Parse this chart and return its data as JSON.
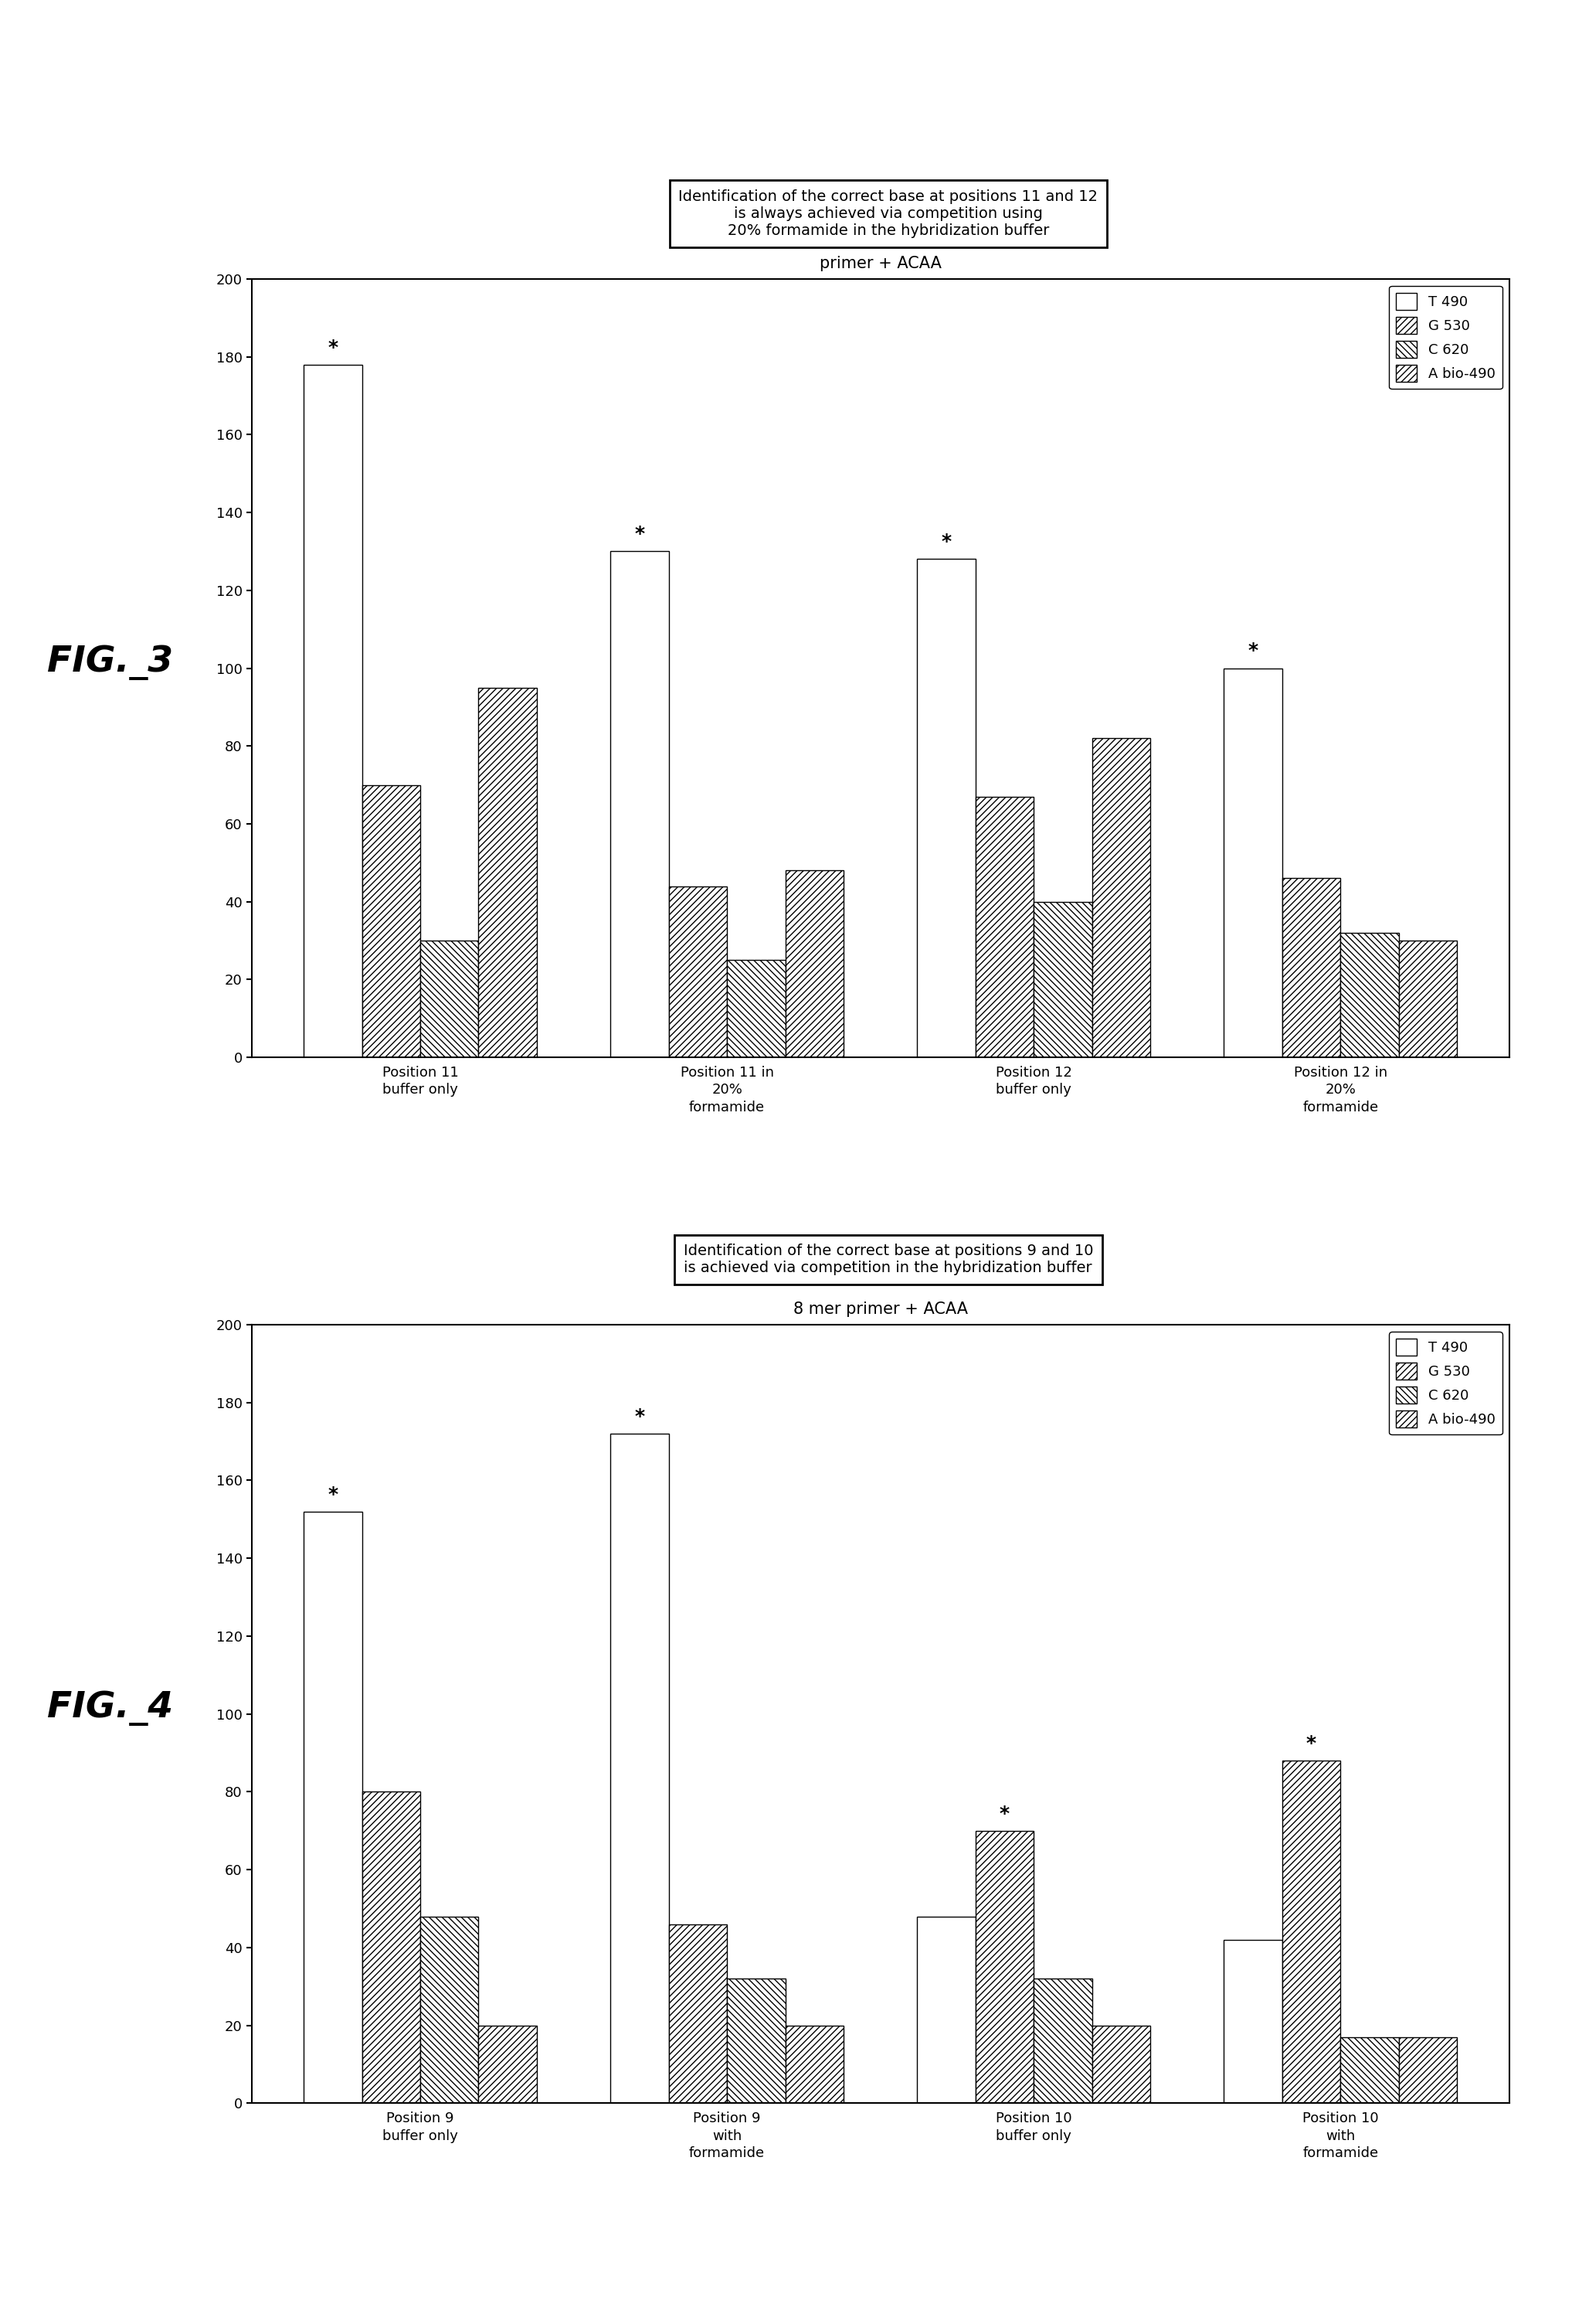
{
  "fig3": {
    "title": "primer + ACAA",
    "box_text": "Identification of the correct base at positions 11 and 12\nis always achieved via competition using\n20% formamide in the hybridization buffer",
    "categories": [
      "Position 11\nbuffer only",
      "Position 11 in\n20%\nformamide",
      "Position 12\nbuffer only",
      "Position 12 in\n20%\nformamide"
    ],
    "series": {
      "T 490": [
        178,
        130,
        128,
        100
      ],
      "G 530": [
        70,
        44,
        67,
        46
      ],
      "C 620": [
        30,
        25,
        40,
        32
      ],
      "A bio-490": [
        95,
        48,
        82,
        30
      ]
    },
    "stars": [
      {
        "group": 0,
        "series": 0,
        "value": 178
      },
      {
        "group": 1,
        "series": 0,
        "value": 130
      },
      {
        "group": 2,
        "series": 0,
        "value": 128
      },
      {
        "group": 3,
        "series": 0,
        "value": 100
      }
    ]
  },
  "fig4": {
    "title": "8 mer primer + ACAA",
    "box_text": "Identification of the correct base at positions 9 and 10\nis achieved via competition in the hybridization buffer",
    "categories": [
      "Position 9\nbuffer only",
      "Position 9\nwith\nformamide",
      "Position 10\nbuffer only",
      "Position 10\nwith\nformamide"
    ],
    "series": {
      "T 490": [
        152,
        172,
        48,
        42
      ],
      "G 530": [
        80,
        46,
        70,
        88
      ],
      "C 620": [
        48,
        32,
        32,
        17
      ],
      "A bio-490": [
        20,
        20,
        20,
        17
      ]
    },
    "stars": [
      {
        "group": 0,
        "series": 0,
        "value": 152
      },
      {
        "group": 1,
        "series": 0,
        "value": 172
      },
      {
        "group": 2,
        "series": 1,
        "value": 70
      },
      {
        "group": 3,
        "series": 1,
        "value": 88
      }
    ]
  },
  "legend_labels": [
    "T 490",
    "G 530",
    "C 620",
    "A bio-490"
  ],
  "bar_styles": [
    {
      "facecolor": "white",
      "edgecolor": "black",
      "hatch": ""
    },
    {
      "facecolor": "white",
      "edgecolor": "black",
      "hatch": "////"
    },
    {
      "facecolor": "white",
      "edgecolor": "black",
      "hatch": "\\\\\\\\"
    },
    {
      "facecolor": "white",
      "edgecolor": "black",
      "hatch": "////"
    }
  ],
  "bar_width": 0.19,
  "ylim": [
    0,
    200
  ],
  "yticks": [
    0,
    20,
    40,
    60,
    80,
    100,
    120,
    140,
    160,
    180,
    200
  ]
}
